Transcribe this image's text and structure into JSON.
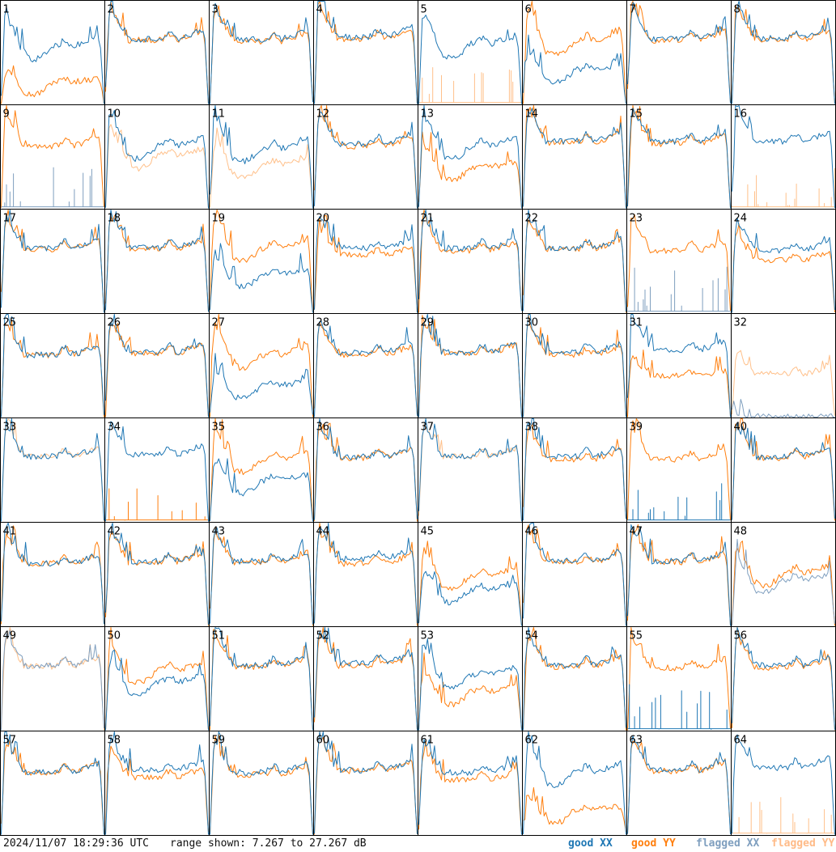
{
  "colors": {
    "good_xx": "#1f77b4",
    "good_yy": "#ff7f0e",
    "flagged_xx": "#7f9fbf",
    "flagged_yy": "#ffc08a",
    "frame": "#000000"
  },
  "footer": {
    "timestamp": "2024/11/07 18:29:36 UTC",
    "range": "range shown: 7.267 to 27.267 dB"
  },
  "legend": [
    {
      "label": "good XX",
      "color": "#1f77b4"
    },
    {
      "label": "good YY",
      "color": "#ff7f0e"
    },
    {
      "label": "flagged XX",
      "color": "#7f9fbf"
    },
    {
      "label": "flagged YY",
      "color": "#ffc08a"
    }
  ],
  "chart_data": {
    "type": "line",
    "layout": "8x8 small multiples",
    "ylim": [
      7.267,
      27.267
    ],
    "yunit": "dB",
    "x_points": 60,
    "panels": [
      {
        "label": "1",
        "xx": "good",
        "yy": "good",
        "profile": "low",
        "xx_level": 19.5,
        "yy_level": 12.0
      },
      {
        "label": "2",
        "xx": "good",
        "yy": "good",
        "profile": "normal",
        "xx_level": 21.0,
        "yy_level": 20.8
      },
      {
        "label": "3",
        "xx": "good",
        "yy": "good",
        "profile": "normal",
        "xx_level": 21.0,
        "yy_level": 20.5
      },
      {
        "label": "4",
        "xx": "good",
        "yy": "good",
        "profile": "normal",
        "xx_level": 21.5,
        "yy_level": 21.0
      },
      {
        "label": "5",
        "xx": "good",
        "yy": "flagged",
        "profile": "low",
        "xx_level": 20.0,
        "yy_level": 7.4,
        "yy_spiky": true
      },
      {
        "label": "6",
        "xx": "good",
        "yy": "good",
        "profile": "low",
        "xx_level": 14.5,
        "yy_level": 20.5
      },
      {
        "label": "7",
        "xx": "good",
        "yy": "good",
        "profile": "normal",
        "xx_level": 21.0,
        "yy_level": 20.8
      },
      {
        "label": "8",
        "xx": "good",
        "yy": "good",
        "profile": "normal",
        "xx_level": 21.2,
        "yy_level": 21.0
      },
      {
        "label": "9",
        "xx": "flagged",
        "yy": "good",
        "profile": "normal",
        "xx_level": 7.6,
        "yy_level": 20.5,
        "xx_spiky": true
      },
      {
        "label": "10",
        "xx": "good",
        "yy": "flagged",
        "profile": "low",
        "xx_level": 20.5,
        "yy_level": 18.5
      },
      {
        "label": "11",
        "xx": "good",
        "yy": "flagged",
        "profile": "low",
        "xx_level": 20.0,
        "yy_level": 16.5
      },
      {
        "label": "12",
        "xx": "good",
        "yy": "good",
        "profile": "normal",
        "xx_level": 21.0,
        "yy_level": 20.5
      },
      {
        "label": "13",
        "xx": "good",
        "yy": "good",
        "profile": "low",
        "xx_level": 20.5,
        "yy_level": 16.0
      },
      {
        "label": "14",
        "xx": "good",
        "yy": "good",
        "profile": "normal",
        "xx_level": 21.5,
        "yy_level": 21.2
      },
      {
        "label": "15",
        "xx": "good",
        "yy": "good",
        "profile": "normal",
        "xx_level": 21.5,
        "yy_level": 21.0
      },
      {
        "label": "16",
        "xx": "good",
        "yy": "flagged",
        "profile": "normal",
        "xx_level": 21.5,
        "yy_level": 7.4,
        "yy_spiky": true
      },
      {
        "label": "17",
        "xx": "good",
        "yy": "good",
        "profile": "normal",
        "xx_level": 21.0,
        "yy_level": 20.8
      },
      {
        "label": "18",
        "xx": "good",
        "yy": "good",
        "profile": "normal",
        "xx_level": 21.0,
        "yy_level": 20.8
      },
      {
        "label": "19",
        "xx": "good",
        "yy": "good",
        "profile": "low",
        "xx_level": 15.5,
        "yy_level": 21.0
      },
      {
        "label": "20",
        "xx": "good",
        "yy": "good",
        "profile": "normal",
        "xx_level": 21.0,
        "yy_level": 19.5
      },
      {
        "label": "21",
        "xx": "good",
        "yy": "good",
        "profile": "normal",
        "xx_level": 21.0,
        "yy_level": 20.5
      },
      {
        "label": "22",
        "xx": "good",
        "yy": "good",
        "profile": "normal",
        "xx_level": 21.0,
        "yy_level": 20.8
      },
      {
        "label": "23",
        "xx": "flagged",
        "yy": "good",
        "profile": "normal",
        "xx_level": 8.5,
        "yy_level": 20.5,
        "xx_spiky": true
      },
      {
        "label": "24",
        "xx": "good",
        "yy": "good",
        "profile": "normal",
        "xx_level": 20.5,
        "yy_level": 18.5
      },
      {
        "label": "25",
        "xx": "good",
        "yy": "good",
        "profile": "normal",
        "xx_level": 20.5,
        "yy_level": 20.5
      },
      {
        "label": "26",
        "xx": "good",
        "yy": "good",
        "profile": "normal",
        "xx_level": 21.0,
        "yy_level": 20.8
      },
      {
        "label": "27",
        "xx": "good",
        "yy": "good",
        "profile": "low",
        "xx_level": 14.0,
        "yy_level": 20.5
      },
      {
        "label": "28",
        "xx": "good",
        "yy": "good",
        "profile": "normal",
        "xx_level": 21.0,
        "yy_level": 20.5
      },
      {
        "label": "29",
        "xx": "good",
        "yy": "good",
        "profile": "normal",
        "xx_level": 21.0,
        "yy_level": 20.8
      },
      {
        "label": "30",
        "xx": "good",
        "yy": "good",
        "profile": "normal",
        "xx_level": 21.0,
        "yy_level": 20.5
      },
      {
        "label": "31",
        "xx": "good",
        "yy": "good",
        "profile": "normal",
        "xx_level": 21.5,
        "yy_level": 16.0
      },
      {
        "label": "32",
        "xx": "flagged",
        "yy": "flagged",
        "profile": "normal",
        "xx_level": 7.4,
        "yy_level": 16.5
      },
      {
        "label": "33",
        "xx": "good",
        "yy": "flagged",
        "profile": "normal",
        "xx_level": 21.0,
        "yy_level": 21.0
      },
      {
        "label": "34",
        "xx": "good",
        "yy": "good",
        "profile": "normal",
        "xx_level": 21.5,
        "yy_level": 7.8,
        "yy_spiky": true
      },
      {
        "label": "35",
        "xx": "good",
        "yy": "good",
        "profile": "low",
        "xx_level": 16.0,
        "yy_level": 20.5
      },
      {
        "label": "36",
        "xx": "good",
        "yy": "good",
        "profile": "normal",
        "xx_level": 21.0,
        "yy_level": 20.8
      },
      {
        "label": "37",
        "xx": "good",
        "yy": "flagged",
        "profile": "normal",
        "xx_level": 21.0,
        "yy_level": 21.0
      },
      {
        "label": "38",
        "xx": "good",
        "yy": "good",
        "profile": "normal",
        "xx_level": 21.0,
        "yy_level": 20.5
      },
      {
        "label": "39",
        "xx": "good",
        "yy": "good",
        "profile": "normal",
        "xx_level": 7.4,
        "yy_level": 20.5,
        "xx_spiky": true
      },
      {
        "label": "40",
        "xx": "good",
        "yy": "good",
        "profile": "normal",
        "xx_level": 21.0,
        "yy_level": 20.8
      },
      {
        "label": "41",
        "xx": "good",
        "yy": "good",
        "profile": "normal",
        "xx_level": 20.5,
        "yy_level": 20.5
      },
      {
        "label": "42",
        "xx": "good",
        "yy": "good",
        "profile": "normal",
        "xx_level": 21.0,
        "yy_level": 20.8
      },
      {
        "label": "43",
        "xx": "good",
        "yy": "good",
        "profile": "normal",
        "xx_level": 21.0,
        "yy_level": 20.8
      },
      {
        "label": "44",
        "xx": "good",
        "yy": "good",
        "profile": "normal",
        "xx_level": 21.5,
        "yy_level": 20.5
      },
      {
        "label": "45",
        "xx": "good",
        "yy": "good",
        "profile": "low",
        "xx_level": 15.0,
        "yy_level": 18.0
      },
      {
        "label": "46",
        "xx": "good",
        "yy": "good",
        "profile": "normal",
        "xx_level": 21.0,
        "yy_level": 20.8
      },
      {
        "label": "47",
        "xx": "good",
        "yy": "good",
        "profile": "normal",
        "xx_level": 21.0,
        "yy_level": 20.8
      },
      {
        "label": "48",
        "xx": "flagged",
        "yy": "good",
        "profile": "low",
        "xx_level": 17.0,
        "yy_level": 18.5
      },
      {
        "label": "49",
        "xx": "flagged",
        "yy": "flagged",
        "profile": "normal",
        "xx_level": 21.0,
        "yy_level": 20.8
      },
      {
        "label": "50",
        "xx": "good",
        "yy": "good",
        "profile": "low",
        "xx_level": 17.5,
        "yy_level": 20.0
      },
      {
        "label": "51",
        "xx": "good",
        "yy": "good",
        "profile": "normal",
        "xx_level": 21.0,
        "yy_level": 20.8
      },
      {
        "label": "52",
        "xx": "good",
        "yy": "good",
        "profile": "normal",
        "xx_level": 21.5,
        "yy_level": 21.0
      },
      {
        "label": "53",
        "xx": "good",
        "yy": "good",
        "profile": "low",
        "xx_level": 19.0,
        "yy_level": 15.5
      },
      {
        "label": "54",
        "xx": "good",
        "yy": "good",
        "profile": "normal",
        "xx_level": 21.0,
        "yy_level": 20.8
      },
      {
        "label": "55",
        "xx": "good",
        "yy": "good",
        "profile": "normal",
        "xx_level": 8.5,
        "yy_level": 20.5,
        "xx_spiky": true
      },
      {
        "label": "56",
        "xx": "good",
        "yy": "good",
        "profile": "normal",
        "xx_level": 21.0,
        "yy_level": 20.5
      },
      {
        "label": "57",
        "xx": "good",
        "yy": "good",
        "profile": "normal",
        "xx_level": 20.5,
        "yy_level": 20.5
      },
      {
        "label": "58",
        "xx": "good",
        "yy": "good",
        "profile": "normal",
        "xx_level": 21.0,
        "yy_level": 19.5
      },
      {
        "label": "59",
        "xx": "good",
        "yy": "good",
        "profile": "normal",
        "xx_level": 20.5,
        "yy_level": 20.0
      },
      {
        "label": "60",
        "xx": "good",
        "yy": "good",
        "profile": "normal",
        "xx_level": 21.0,
        "yy_level": 20.8
      },
      {
        "label": "61",
        "xx": "good",
        "yy": "good",
        "profile": "normal",
        "xx_level": 20.5,
        "yy_level": 19.0
      },
      {
        "label": "62",
        "xx": "good",
        "yy": "good",
        "profile": "low",
        "xx_level": 20.5,
        "yy_level": 12.5
      },
      {
        "label": "63",
        "xx": "good",
        "yy": "good",
        "profile": "normal",
        "xx_level": 21.0,
        "yy_level": 20.8
      },
      {
        "label": "64",
        "xx": "good",
        "yy": "flagged",
        "profile": "normal",
        "xx_level": 21.5,
        "yy_level": 7.4,
        "yy_spiky": true
      }
    ]
  }
}
